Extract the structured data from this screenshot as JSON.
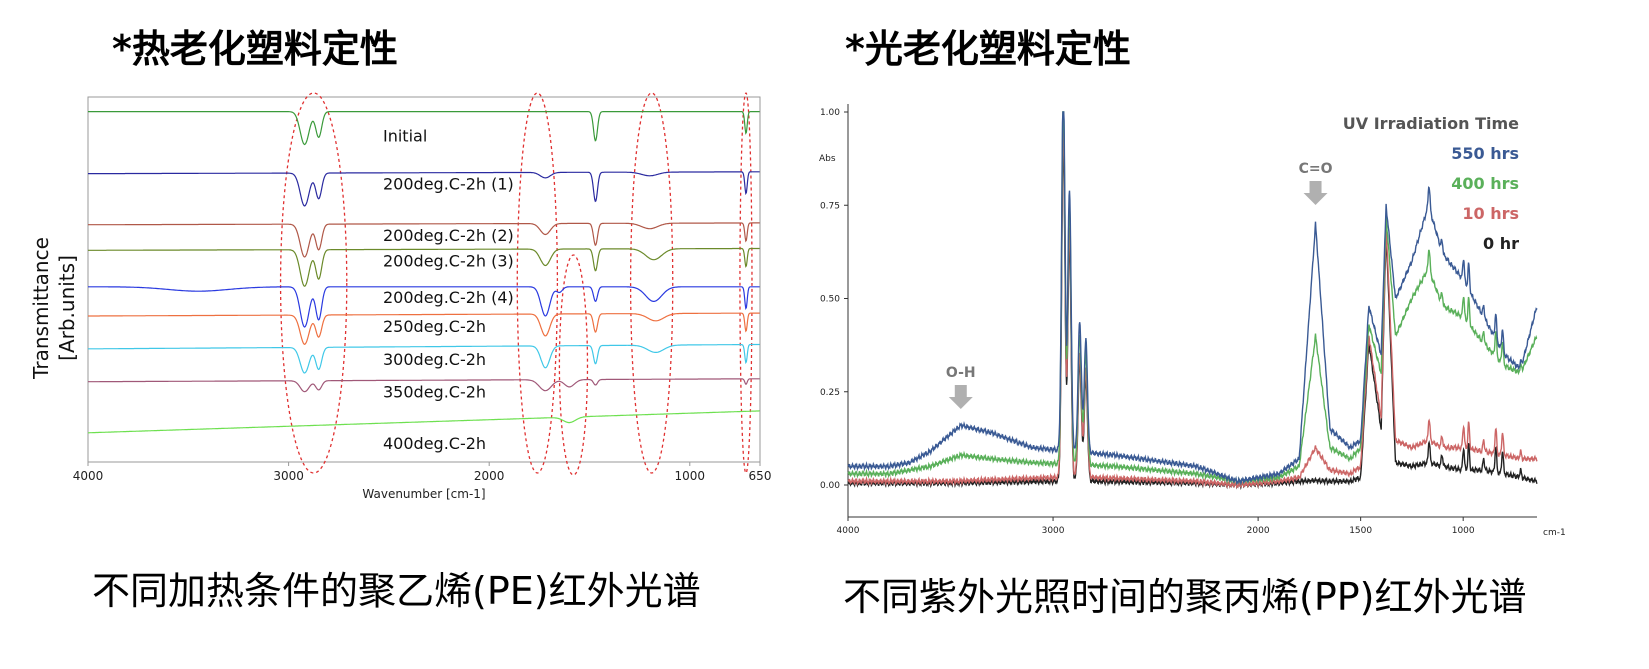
{
  "left": {
    "heading": "*热老化塑料定性",
    "caption": "不同加热条件的聚乙烯(PE)红外光谱",
    "chart_data": {
      "type": "line",
      "xlabel": "Wavenumber [cm-1]",
      "ylabel_line1": "Transmittance",
      "ylabel_line2": "[Arb.units]",
      "xlim": [
        4000,
        650
      ],
      "x_ticks": [
        {
          "value": 4000,
          "label": "4000"
        },
        {
          "value": 3000,
          "label": "3000"
        },
        {
          "value": 2000,
          "label": "2000"
        },
        {
          "value": 1000,
          "label": "1000"
        },
        {
          "value": 650,
          "label": "650"
        }
      ],
      "grid": false,
      "highlighted_regions_cm1": [
        {
          "center": 2875,
          "half_width": 165
        },
        {
          "center": 1760,
          "half_width": 100
        },
        {
          "center": 1580,
          "half_width": 70
        },
        {
          "center": 1190,
          "half_width": 105
        },
        {
          "center": 720,
          "half_width": 30
        }
      ],
      "series": [
        {
          "name": "Initial",
          "color": "#3a9a3a",
          "baseline": 0.04,
          "slope": 0.0,
          "bands": [
            [
              2920,
              0.09,
              22
            ],
            [
              2850,
              0.07,
              15
            ],
            [
              1470,
              0.08,
              10
            ],
            [
              720,
              0.06,
              6
            ]
          ]
        },
        {
          "name": "200deg.C-2h (1)",
          "color": "#2a2aa0",
          "baseline": 0.21,
          "slope": -0.005,
          "bands": [
            [
              2920,
              0.09,
              22
            ],
            [
              2850,
              0.07,
              15
            ],
            [
              1720,
              0.015,
              25
            ],
            [
              1470,
              0.08,
              10
            ],
            [
              1200,
              0.01,
              40
            ],
            [
              720,
              0.06,
              6
            ]
          ]
        },
        {
          "name": "200deg.C-2h (2)",
          "color": "#b05848",
          "baseline": 0.35,
          "slope": -0.005,
          "bands": [
            [
              2920,
              0.09,
              22
            ],
            [
              2850,
              0.07,
              15
            ],
            [
              1720,
              0.03,
              25
            ],
            [
              1470,
              0.06,
              10
            ],
            [
              1200,
              0.015,
              40
            ],
            [
              720,
              0.05,
              6
            ]
          ]
        },
        {
          "name": "200deg.C-2h (3)",
          "color": "#6b8a2a",
          "baseline": 0.42,
          "slope": -0.005,
          "bands": [
            [
              2920,
              0.1,
              22
            ],
            [
              2850,
              0.08,
              15
            ],
            [
              1720,
              0.045,
              25
            ],
            [
              1470,
              0.06,
              10
            ],
            [
              1180,
              0.03,
              40
            ],
            [
              720,
              0.05,
              6
            ]
          ]
        },
        {
          "name": "200deg.C-2h (4)",
          "color": "#2a3ae0",
          "baseline": 0.52,
          "slope": 0.0,
          "bands": [
            [
              3450,
              0.012,
              150
            ],
            [
              2920,
              0.11,
              22
            ],
            [
              2850,
              0.09,
              15
            ],
            [
              1720,
              0.08,
              22
            ],
            [
              1650,
              0.015,
              15
            ],
            [
              1470,
              0.04,
              10
            ],
            [
              1180,
              0.04,
              40
            ],
            [
              720,
              0.06,
              6
            ]
          ]
        },
        {
          "name": "250deg.C-2h",
          "color": "#ee7040",
          "baseline": 0.6,
          "slope": -0.008,
          "bands": [
            [
              2920,
              0.08,
              22
            ],
            [
              2850,
              0.06,
              15
            ],
            [
              1720,
              0.06,
              22
            ],
            [
              1470,
              0.05,
              10
            ],
            [
              1170,
              0.02,
              40
            ],
            [
              720,
              0.05,
              6
            ]
          ]
        },
        {
          "name": "300deg.C-2h",
          "color": "#40c8e8",
          "baseline": 0.69,
          "slope": -0.012,
          "bands": [
            [
              2920,
              0.07,
              22
            ],
            [
              2850,
              0.06,
              15
            ],
            [
              1720,
              0.06,
              22
            ],
            [
              1470,
              0.05,
              10
            ],
            [
              1170,
              0.02,
              40
            ],
            [
              720,
              0.05,
              6
            ]
          ]
        },
        {
          "name": "350deg.C-2h",
          "color": "#a05878",
          "baseline": 0.78,
          "slope": -0.008,
          "bands": [
            [
              2920,
              0.03,
              22
            ],
            [
              2850,
              0.025,
              15
            ],
            [
              1720,
              0.03,
              30
            ],
            [
              1600,
              0.02,
              25
            ],
            [
              1470,
              0.015,
              10
            ],
            [
              720,
              0.015,
              6
            ]
          ]
        },
        {
          "name": "400deg.C-2h",
          "color": "#6ee050",
          "baseline": 0.92,
          "slope": -0.06,
          "bands": [
            [
              1600,
              0.015,
              30
            ]
          ]
        }
      ]
    }
  },
  "right": {
    "heading": "*光老化塑料定性",
    "caption": "不同紫外光照时间的聚丙烯(PP)红外光谱",
    "chart_data": {
      "type": "line",
      "ylabel": "Abs",
      "xlabel": "cm-1",
      "xlim": [
        4000,
        640
      ],
      "ylim": [
        0,
        1.0
      ],
      "x_ticks": [
        {
          "value": 4000,
          "label": "4000"
        },
        {
          "value": 3000,
          "label": "3000"
        },
        {
          "value": 2000,
          "label": "2000"
        },
        {
          "value": 1500,
          "label": "1500"
        },
        {
          "value": 1000,
          "label": "1000"
        }
      ],
      "y_ticks": [
        {
          "value": 0.0,
          "label": "0.00"
        },
        {
          "value": 0.25,
          "label": "0.25"
        },
        {
          "value": 0.5,
          "label": "0.50"
        },
        {
          "value": 0.75,
          "label": "0.75"
        },
        {
          "value": 1.0,
          "label": "1.00"
        }
      ],
      "grid": false,
      "legend_title": "UV Irradiation Time",
      "legend_position": "top-right",
      "annotations": [
        {
          "text": "O-H",
          "x": 3450
        },
        {
          "text": "C=O",
          "x": 1720
        }
      ],
      "series": [
        {
          "name": "550 hrs",
          "color": "#3a5a94",
          "base": [
            [
              4000,
              0.05
            ],
            [
              3800,
              0.05
            ],
            [
              3700,
              0.06
            ],
            [
              3600,
              0.09
            ],
            [
              3450,
              0.16
            ],
            [
              3300,
              0.14
            ],
            [
              3100,
              0.1
            ],
            [
              2700,
              0.08
            ],
            [
              2300,
              0.05
            ],
            [
              2100,
              0.01
            ],
            [
              1900,
              0.03
            ],
            [
              1800,
              0.07
            ],
            [
              1720,
              0.7
            ],
            [
              1650,
              0.15
            ],
            [
              1550,
              0.1
            ],
            [
              1500,
              0.12
            ],
            [
              1460,
              0.48
            ],
            [
              1400,
              0.35
            ],
            [
              1376,
              0.75
            ],
            [
              1330,
              0.5
            ],
            [
              1250,
              0.6
            ],
            [
              1170,
              0.75
            ],
            [
              1100,
              0.62
            ],
            [
              1000,
              0.55
            ],
            [
              900,
              0.45
            ],
            [
              800,
              0.35
            ],
            [
              720,
              0.31
            ],
            [
              640,
              0.48
            ]
          ]
        },
        {
          "name": "400 hrs",
          "color": "#5ab05a",
          "base": [
            [
              4000,
              0.03
            ],
            [
              3800,
              0.03
            ],
            [
              3600,
              0.05
            ],
            [
              3450,
              0.08
            ],
            [
              3300,
              0.07
            ],
            [
              3100,
              0.06
            ],
            [
              2700,
              0.05
            ],
            [
              2300,
              0.03
            ],
            [
              2100,
              0.01
            ],
            [
              1900,
              0.02
            ],
            [
              1800,
              0.05
            ],
            [
              1720,
              0.4
            ],
            [
              1650,
              0.1
            ],
            [
              1550,
              0.07
            ],
            [
              1500,
              0.1
            ],
            [
              1460,
              0.43
            ],
            [
              1400,
              0.3
            ],
            [
              1376,
              0.72
            ],
            [
              1330,
              0.4
            ],
            [
              1250,
              0.5
            ],
            [
              1170,
              0.58
            ],
            [
              1100,
              0.48
            ],
            [
              1000,
              0.45
            ],
            [
              900,
              0.38
            ],
            [
              800,
              0.32
            ],
            [
              720,
              0.3
            ],
            [
              640,
              0.4
            ]
          ]
        },
        {
          "name": "10 hrs",
          "color": "#cc6666",
          "base": [
            [
              4000,
              0.01
            ],
            [
              3500,
              0.01
            ],
            [
              3000,
              0.02
            ],
            [
              2800,
              0.02
            ],
            [
              2300,
              0.01
            ],
            [
              2100,
              0.0
            ],
            [
              1900,
              0.01
            ],
            [
              1800,
              0.02
            ],
            [
              1720,
              0.1
            ],
            [
              1650,
              0.04
            ],
            [
              1550,
              0.03
            ],
            [
              1500,
              0.05
            ],
            [
              1460,
              0.4
            ],
            [
              1400,
              0.18
            ],
            [
              1376,
              0.7
            ],
            [
              1330,
              0.12
            ],
            [
              1250,
              0.1
            ],
            [
              1170,
              0.12
            ],
            [
              1100,
              0.1
            ],
            [
              1000,
              0.1
            ],
            [
              900,
              0.09
            ],
            [
              800,
              0.08
            ],
            [
              720,
              0.07
            ],
            [
              640,
              0.07
            ]
          ]
        },
        {
          "name": "0 hr",
          "color": "#222222",
          "base": [
            [
              4000,
              0.005
            ],
            [
              3500,
              0.005
            ],
            [
              3000,
              0.01
            ],
            [
              2800,
              0.01
            ],
            [
              2300,
              0.005
            ],
            [
              2100,
              0.0
            ],
            [
              1900,
              0.005
            ],
            [
              1800,
              0.01
            ],
            [
              1720,
              0.012
            ],
            [
              1650,
              0.01
            ],
            [
              1550,
              0.01
            ],
            [
              1500,
              0.02
            ],
            [
              1460,
              0.38
            ],
            [
              1400,
              0.15
            ],
            [
              1376,
              0.68
            ],
            [
              1330,
              0.06
            ],
            [
              1250,
              0.05
            ],
            [
              1170,
              0.06
            ],
            [
              1100,
              0.05
            ],
            [
              1000,
              0.04
            ],
            [
              900,
              0.04
            ],
            [
              800,
              0.03
            ],
            [
              720,
              0.02
            ],
            [
              640,
              0.01
            ]
          ]
        }
      ],
      "ch_peaks": [
        [
          2950,
          1.0
        ],
        [
          2920,
          0.7
        ],
        [
          2870,
          0.35
        ],
        [
          2840,
          0.3
        ]
      ],
      "sharp_peaks": [
        [
          1166,
          0.06
        ],
        [
          1103,
          0.03
        ],
        [
          998,
          0.06
        ],
        [
          973,
          0.07
        ],
        [
          900,
          0.03
        ],
        [
          841,
          0.07
        ],
        [
          808,
          0.06
        ],
        [
          720,
          0.02
        ]
      ]
    }
  }
}
